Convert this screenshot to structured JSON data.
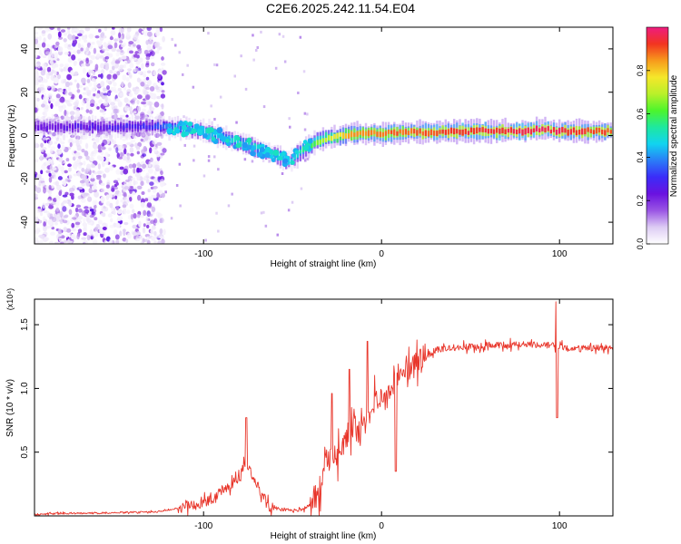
{
  "title": "C2E6.2025.242.11.54.E04",
  "chart_data": [
    {
      "type": "heatmap",
      "name": "spectrogram",
      "xlabel": "Height of straight line (km)",
      "ylabel": "Frequency (Hz)",
      "xlim": [
        -195,
        130
      ],
      "ylim": [
        -50,
        50
      ],
      "xticks": [
        -100,
        0,
        100
      ],
      "yticks": [
        -40,
        -20,
        0,
        20,
        40
      ],
      "colorbar": {
        "label": "Normalized spectral amplitude",
        "range": [
          0,
          1
        ],
        "ticks": [
          "0.0",
          "0.2",
          "0.4",
          "0.6",
          "0.8"
        ],
        "colormap": [
          "#ffffff",
          "#ddccf4",
          "#9a55e4",
          "#6a12e0",
          "#3b2cf8",
          "#2a7df7",
          "#11d4f0",
          "#1ee8a0",
          "#4cf52c",
          "#b9f02a",
          "#f5e72a",
          "#f79a1c",
          "#f23420",
          "#ee1c80"
        ]
      },
      "noise_region_x": [
        -195,
        -122
      ],
      "ridge": {
        "x": [
          -195,
          -160,
          -130,
          -120,
          -100,
          -85,
          -70,
          -60,
          -52,
          -45,
          -38,
          -30,
          -20,
          -10,
          0,
          20,
          50,
          80,
          90,
          100,
          130
        ],
        "freq": [
          4,
          4,
          4,
          4,
          2,
          -2,
          -6,
          -9,
          -12,
          -7,
          -3,
          -1,
          0.5,
          1,
          1,
          1.5,
          2,
          2,
          3,
          2,
          2
        ],
        "amplitude": [
          0.22,
          0.26,
          0.3,
          0.38,
          0.45,
          0.48,
          0.5,
          0.48,
          0.45,
          0.55,
          0.62,
          0.72,
          0.82,
          0.86,
          0.88,
          0.9,
          0.93,
          0.95,
          0.97,
          0.95,
          0.9
        ]
      }
    },
    {
      "type": "line",
      "name": "snr",
      "xlabel": "Height of straight line (km)",
      "ylabel": "SNR (10 * v/v)",
      "yscale_label": "(x10⁴)",
      "xlim": [
        -195,
        130
      ],
      "ylim": [
        0,
        1.7
      ],
      "xticks": [
        -100,
        0,
        100
      ],
      "yticks": [
        0.5,
        1.0,
        1.5
      ],
      "color": "#e8352a",
      "series": [
        {
          "name": "SNR",
          "x": [
            -195,
            -180,
            -160,
            -140,
            -125,
            -115,
            -105,
            -95,
            -90,
            -85,
            -80,
            -76,
            -72,
            -68,
            -64,
            -60,
            -55,
            -50,
            -45,
            -40,
            -35,
            -32,
            -28,
            -24,
            -20,
            -16,
            -12,
            -8,
            -4,
            0,
            4,
            8,
            12,
            16,
            20,
            25,
            30,
            35,
            40,
            50,
            60,
            70,
            80,
            90,
            95,
            100,
            105,
            110,
            120,
            130
          ],
          "y": [
            0.01,
            0.02,
            0.02,
            0.03,
            0.03,
            0.06,
            0.08,
            0.12,
            0.2,
            0.25,
            0.3,
            0.42,
            0.3,
            0.2,
            0.08,
            0.06,
            0.05,
            0.04,
            0.05,
            0.08,
            0.2,
            0.38,
            0.48,
            0.52,
            0.6,
            0.72,
            0.62,
            0.8,
            0.88,
            0.9,
            0.96,
            1.02,
            1.1,
            1.12,
            1.18,
            1.25,
            1.3,
            1.31,
            1.32,
            1.33,
            1.34,
            1.34,
            1.35,
            1.34,
            1.34,
            1.33,
            1.32,
            1.31,
            1.32,
            1.32
          ]
        }
      ],
      "spikes": [
        {
          "x": -76,
          "y": 0.77
        },
        {
          "x": -28,
          "y": 0.96
        },
        {
          "x": -18,
          "y": 1.15
        },
        {
          "x": -8,
          "y": 1.37
        },
        {
          "x": 8,
          "y": 0.35
        },
        {
          "x": 98,
          "y": 1.68
        },
        {
          "x": 98.6,
          "y": 0.77
        }
      ]
    }
  ]
}
